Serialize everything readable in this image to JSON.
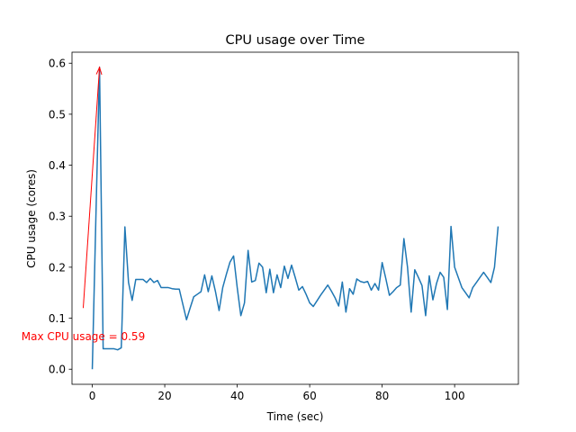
{
  "chart_data": {
    "type": "line",
    "title": "CPU usage over Time",
    "xlabel": "Time (sec)",
    "ylabel": "CPU usage (cores)",
    "xlim": [
      -5.6,
      117.6
    ],
    "ylim": [
      -0.0296,
      0.6216
    ],
    "xticks": [
      0,
      20,
      40,
      60,
      80,
      100
    ],
    "xtick_labels": [
      "0",
      "20",
      "40",
      "60",
      "80",
      "100"
    ],
    "yticks": [
      0.0,
      0.1,
      0.2,
      0.3,
      0.4,
      0.5,
      0.6
    ],
    "ytick_labels": [
      "0.0",
      "0.1",
      "0.2",
      "0.3",
      "0.4",
      "0.5",
      "0.6"
    ],
    "grid": false,
    "line_color": "#1f77b4",
    "series": [
      {
        "name": "CPU usage",
        "x": [
          0,
          1,
          2,
          3,
          4,
          5,
          6,
          7,
          8,
          9,
          10,
          11,
          12,
          13,
          14,
          15,
          16,
          17,
          18,
          19,
          20,
          21,
          22,
          23,
          24,
          25,
          26,
          27,
          28,
          29,
          30,
          31,
          32,
          33,
          34,
          35,
          36,
          37,
          38,
          39,
          40,
          41,
          42,
          43,
          44,
          45,
          46,
          47,
          48,
          49,
          50,
          51,
          52,
          53,
          54,
          55,
          56,
          57,
          58,
          59,
          60,
          61,
          62,
          63,
          64,
          65,
          66,
          67,
          68,
          69,
          70,
          71,
          72,
          73,
          74,
          75,
          76,
          77,
          78,
          79,
          80,
          81,
          82,
          83,
          84,
          85,
          86,
          87,
          88,
          89,
          90,
          91,
          92,
          93,
          94,
          95,
          96,
          97,
          98,
          99,
          100,
          101,
          102,
          103,
          104,
          105,
          106,
          107,
          108,
          109,
          110,
          111,
          112
        ],
        "values": [
          0.0,
          0.3,
          0.592,
          0.04,
          0.04,
          0.04,
          0.04,
          0.038,
          0.042,
          0.279,
          0.17,
          0.135,
          0.176,
          0.176,
          0.176,
          0.17,
          0.178,
          0.17,
          0.174,
          0.16,
          0.16,
          0.16,
          0.158,
          0.157,
          0.157,
          0.127,
          0.097,
          0.12,
          0.142,
          0.147,
          0.152,
          0.185,
          0.152,
          0.183,
          0.152,
          0.115,
          0.16,
          0.186,
          0.21,
          0.222,
          0.16,
          0.105,
          0.13,
          0.233,
          0.171,
          0.174,
          0.208,
          0.2,
          0.15,
          0.196,
          0.15,
          0.185,
          0.16,
          0.202,
          0.178,
          0.204,
          0.18,
          0.155,
          0.162,
          0.147,
          0.13,
          0.123,
          0.134,
          0.145,
          0.155,
          0.165,
          0.153,
          0.14,
          0.124,
          0.171,
          0.112,
          0.158,
          0.147,
          0.177,
          0.172,
          0.17,
          0.172,
          0.155,
          0.168,
          0.155,
          0.209,
          0.178,
          0.145,
          0.152,
          0.16,
          0.165,
          0.256,
          0.2,
          0.112,
          0.195,
          0.18,
          0.164,
          0.105,
          0.183,
          0.136,
          0.168,
          0.19,
          0.18,
          0.117,
          0.28,
          0.2,
          0.18,
          0.16,
          0.15,
          0.14,
          0.16,
          0.17,
          0.18,
          0.19,
          0.18,
          0.17,
          0.2,
          0.28
        ]
      }
    ],
    "annotation": {
      "text": "Max CPU usage = 0.59",
      "color": "#ff0000",
      "arrow_from": [
        -2.5,
        0.12
      ],
      "arrow_to": [
        2,
        0.592
      ]
    }
  }
}
